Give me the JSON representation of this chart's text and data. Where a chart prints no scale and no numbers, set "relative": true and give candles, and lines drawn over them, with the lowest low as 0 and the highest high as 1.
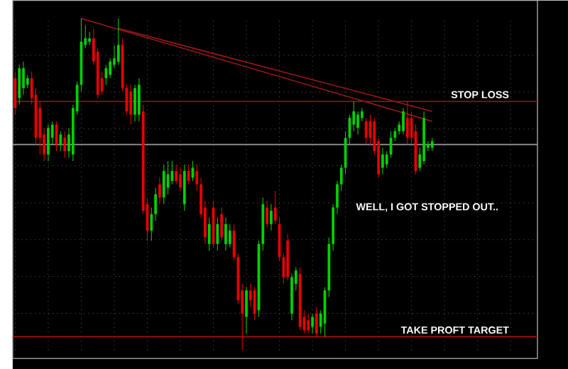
{
  "chart_data": {
    "type": "candlestick",
    "relative": true,
    "grid": true,
    "annotations": [
      "WELL, I GOT STOPPED OUT.."
    ],
    "ref_lines": [
      {
        "axis": "y",
        "value": 0.75,
        "label": "STOP LOSS",
        "color": "#8b1010"
      },
      {
        "axis": "y",
        "value": 0.04,
        "label": "TAKE PROFT TARGET",
        "color": "#b01010"
      },
      {
        "axis": "y",
        "value": 0.62,
        "color": "#9a9a9a"
      }
    ],
    "categories": [
      null,
      null,
      null,
      null,
      null,
      null,
      null,
      null,
      null,
      null,
      null,
      null,
      null,
      null,
      null,
      null,
      null,
      null,
      null,
      null,
      null,
      null,
      null,
      null,
      null,
      null,
      null,
      null,
      null,
      null,
      null,
      null,
      null,
      null,
      null,
      null,
      null,
      null,
      null,
      null,
      null,
      null,
      null,
      null,
      null,
      null,
      null,
      null,
      null,
      null,
      null,
      null,
      null,
      null,
      null,
      null,
      null,
      null,
      null,
      null,
      null,
      null,
      null,
      null,
      null,
      null,
      null,
      null,
      null,
      null,
      null,
      null,
      null,
      null,
      null,
      null,
      null,
      null,
      null,
      null,
      null,
      null,
      null,
      null,
      null,
      null,
      null,
      null,
      null,
      null,
      null,
      null,
      null,
      null,
      null,
      null,
      null,
      null,
      null,
      null,
      null,
      null
    ],
    "ohlc": [
      [
        0.82,
        0.84,
        0.71,
        0.73
      ],
      [
        0.76,
        0.86,
        0.74,
        0.85
      ],
      [
        0.79,
        0.87,
        0.77,
        0.85
      ],
      [
        0.8,
        0.83,
        0.79,
        0.82
      ],
      [
        0.82,
        0.84,
        0.74,
        0.76
      ],
      [
        0.77,
        0.79,
        0.62,
        0.64
      ],
      [
        0.73,
        0.75,
        0.59,
        0.64
      ],
      [
        0.65,
        0.67,
        0.57,
        0.59
      ],
      [
        0.59,
        0.68,
        0.57,
        0.67
      ],
      [
        0.64,
        0.69,
        0.62,
        0.68
      ],
      [
        0.68,
        0.69,
        0.6,
        0.62
      ],
      [
        0.62,
        0.66,
        0.6,
        0.65
      ],
      [
        0.64,
        0.66,
        0.58,
        0.6
      ],
      [
        0.6,
        0.67,
        0.58,
        0.65
      ],
      [
        0.59,
        0.74,
        0.57,
        0.73
      ],
      [
        0.72,
        0.81,
        0.71,
        0.8
      ],
      [
        0.8,
        1.0,
        0.78,
        0.93
      ],
      [
        0.92,
        0.98,
        0.91,
        0.94
      ],
      [
        0.93,
        0.96,
        0.92,
        0.94
      ],
      [
        0.94,
        0.97,
        0.86,
        0.87
      ],
      [
        0.9,
        0.91,
        0.76,
        0.77
      ],
      [
        0.82,
        0.84,
        0.77,
        0.78
      ],
      [
        0.82,
        0.86,
        0.8,
        0.85
      ],
      [
        0.83,
        0.88,
        0.82,
        0.87
      ],
      [
        0.86,
        0.92,
        0.85,
        0.88
      ],
      [
        0.87,
        1.0,
        0.86,
        0.92
      ],
      [
        0.92,
        0.94,
        0.78,
        0.79
      ],
      [
        0.79,
        0.8,
        0.71,
        0.72
      ],
      [
        0.78,
        0.8,
        0.68,
        0.71
      ],
      [
        0.71,
        0.8,
        0.69,
        0.79
      ],
      [
        0.71,
        0.82,
        0.69,
        0.8
      ],
      [
        0.72,
        0.74,
        0.41,
        0.42
      ],
      [
        0.44,
        0.46,
        0.33,
        0.36
      ],
      [
        0.36,
        0.43,
        0.33,
        0.41
      ],
      [
        0.41,
        0.49,
        0.39,
        0.47
      ],
      [
        0.5,
        0.52,
        0.44,
        0.46
      ],
      [
        0.46,
        0.56,
        0.44,
        0.54
      ],
      [
        0.49,
        0.57,
        0.47,
        0.53
      ],
      [
        0.51,
        0.57,
        0.5,
        0.54
      ],
      [
        0.54,
        0.56,
        0.5,
        0.51
      ],
      [
        0.53,
        0.55,
        0.48,
        0.49
      ],
      [
        0.44,
        0.56,
        0.42,
        0.54
      ],
      [
        0.54,
        0.56,
        0.5,
        0.51
      ],
      [
        0.52,
        0.57,
        0.51,
        0.55
      ],
      [
        0.54,
        0.56,
        0.48,
        0.5
      ],
      [
        0.5,
        0.52,
        0.4,
        0.41
      ],
      [
        0.43,
        0.45,
        0.32,
        0.34
      ],
      [
        0.32,
        0.4,
        0.3,
        0.38
      ],
      [
        0.43,
        0.45,
        0.31,
        0.32
      ],
      [
        0.32,
        0.4,
        0.3,
        0.38
      ],
      [
        0.41,
        0.43,
        0.33,
        0.34
      ],
      [
        0.32,
        0.4,
        0.3,
        0.38
      ],
      [
        0.32,
        0.38,
        0.31,
        0.36
      ],
      [
        0.36,
        0.38,
        0.27,
        0.28
      ],
      [
        0.28,
        0.29,
        0.14,
        0.15
      ],
      [
        0.18,
        0.2,
        0.0,
        0.11
      ],
      [
        0.1,
        0.19,
        0.05,
        0.18
      ],
      [
        0.18,
        0.2,
        0.13,
        0.15
      ],
      [
        0.18,
        0.19,
        0.09,
        0.11
      ],
      [
        0.12,
        0.33,
        0.1,
        0.32
      ],
      [
        0.32,
        0.46,
        0.3,
        0.44
      ],
      [
        0.43,
        0.45,
        0.37,
        0.38
      ],
      [
        0.38,
        0.44,
        0.36,
        0.42
      ],
      [
        0.43,
        0.48,
        0.38,
        0.39
      ],
      [
        0.38,
        0.4,
        0.27,
        0.28
      ],
      [
        0.28,
        0.29,
        0.2,
        0.22
      ],
      [
        0.33,
        0.35,
        0.21,
        0.22
      ],
      [
        0.11,
        0.23,
        0.09,
        0.22
      ],
      [
        0.2,
        0.25,
        0.18,
        0.24
      ],
      [
        0.23,
        0.25,
        0.06,
        0.07
      ],
      [
        0.1,
        0.12,
        0.05,
        0.06
      ],
      [
        0.09,
        0.11,
        0.05,
        0.06
      ],
      [
        0.07,
        0.11,
        0.05,
        0.1
      ],
      [
        0.11,
        0.13,
        0.04,
        0.05
      ],
      [
        0.07,
        0.12,
        0.05,
        0.11
      ],
      [
        0.08,
        0.19,
        0.04,
        0.18
      ],
      [
        0.18,
        0.34,
        0.16,
        0.32
      ],
      [
        0.32,
        0.44,
        0.3,
        0.43
      ],
      [
        0.43,
        0.51,
        0.41,
        0.5
      ],
      [
        0.5,
        0.56,
        0.48,
        0.55
      ],
      [
        0.55,
        0.66,
        0.53,
        0.64
      ],
      [
        0.64,
        0.71,
        0.62,
        0.7
      ],
      [
        0.68,
        0.75,
        0.66,
        0.72
      ],
      [
        0.67,
        0.72,
        0.65,
        0.71
      ],
      [
        0.7,
        0.73,
        0.69,
        0.72
      ],
      [
        0.69,
        0.7,
        0.62,
        0.64
      ],
      [
        0.69,
        0.71,
        0.62,
        0.64
      ],
      [
        0.69,
        0.7,
        0.59,
        0.6
      ],
      [
        0.63,
        0.64,
        0.52,
        0.53
      ],
      [
        0.55,
        0.61,
        0.53,
        0.59
      ],
      [
        0.56,
        0.6,
        0.55,
        0.59
      ],
      [
        0.59,
        0.66,
        0.58,
        0.64
      ],
      [
        0.64,
        0.67,
        0.63,
        0.66
      ],
      [
        0.66,
        0.69,
        0.65,
        0.68
      ],
      [
        0.66,
        0.73,
        0.65,
        0.72
      ],
      [
        0.7,
        0.75,
        0.62,
        0.64
      ],
      [
        0.7,
        0.72,
        0.62,
        0.64
      ],
      [
        0.66,
        0.68,
        0.53,
        0.54
      ],
      [
        0.55,
        0.61,
        0.54,
        0.59
      ],
      [
        0.57,
        0.72,
        0.56,
        0.7
      ],
      [
        0.61,
        0.63,
        0.6,
        0.62
      ],
      [
        0.61,
        0.64,
        0.6,
        0.63
      ]
    ],
    "series": [
      {
        "type": "line",
        "color": "#a01818",
        "values": [
          null,
          null,
          null,
          null,
          null,
          null,
          null,
          null,
          null,
          null,
          null,
          null,
          null,
          null,
          null,
          null,
          1.0,
          null,
          null,
          null,
          null,
          null,
          null,
          null,
          null,
          null,
          null,
          null,
          null,
          null,
          null,
          null,
          null,
          null,
          null,
          null,
          null,
          null,
          null,
          null,
          null,
          null,
          null,
          null,
          null,
          null,
          null,
          null,
          null,
          null,
          null,
          null,
          null,
          null,
          null,
          null,
          null,
          null,
          null,
          null,
          null,
          null,
          null,
          null,
          null,
          null,
          null,
          null,
          null,
          null,
          null,
          null,
          null,
          null,
          null,
          null,
          null,
          null,
          null,
          null,
          null,
          null,
          null,
          null,
          null,
          null,
          null,
          null,
          null,
          null,
          null,
          null,
          null,
          null,
          null,
          null,
          null,
          null,
          null,
          null,
          null,
          0.69
        ]
      },
      {
        "type": "line",
        "color": "#a01818",
        "values": [
          null,
          null,
          null,
          null,
          null,
          null,
          null,
          null,
          null,
          null,
          null,
          null,
          null,
          null,
          null,
          null,
          null,
          null,
          null,
          null,
          null,
          null,
          null,
          null,
          null,
          0.97,
          null,
          null,
          null,
          null,
          null,
          null,
          null,
          null,
          null,
          null,
          null,
          null,
          null,
          null,
          null,
          null,
          null,
          null,
          null,
          null,
          null,
          null,
          null,
          null,
          null,
          null,
          null,
          null,
          null,
          null,
          null,
          null,
          null,
          null,
          null,
          null,
          null,
          null,
          null,
          null,
          null,
          null,
          null,
          null,
          null,
          null,
          null,
          null,
          null,
          null,
          null,
          null,
          null,
          null,
          null,
          null,
          null,
          null,
          null,
          null,
          null,
          null,
          null,
          null,
          null,
          null,
          null,
          null,
          null,
          null,
          null,
          null,
          null,
          null,
          null,
          0.72
        ]
      }
    ]
  }
}
